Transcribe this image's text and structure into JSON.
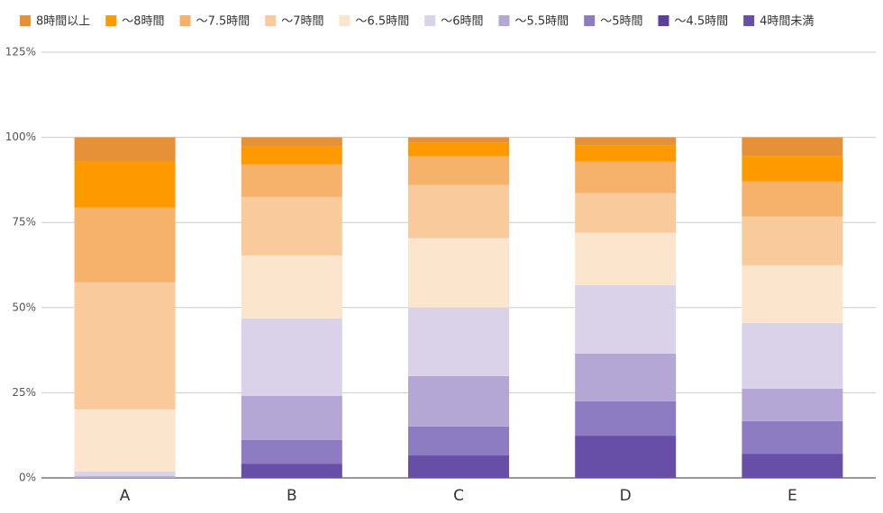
{
  "chart_data": {
    "type": "bar",
    "stacked": true,
    "categories": [
      "A",
      "B",
      "C",
      "D",
      "E"
    ],
    "series": [
      {
        "name": "8時間以上",
        "color": "#e69138",
        "values": [
          7.1,
          2.6,
          1.6,
          2.4,
          5.6
        ]
      },
      {
        "name": "〜8時間",
        "color": "#ff9900",
        "values": [
          13.5,
          5.3,
          4.0,
          4.7,
          7.4
        ]
      },
      {
        "name": "〜7.5時間",
        "color": "#f6b26b",
        "values": [
          22.0,
          9.6,
          8.4,
          9.3,
          10.3
        ]
      },
      {
        "name": "〜7時間",
        "color": "#f9cb9c",
        "values": [
          37.3,
          17.2,
          15.6,
          11.6,
          14.3
        ]
      },
      {
        "name": "〜6.5時間",
        "color": "#fce5cd",
        "values": [
          18.2,
          18.5,
          20.4,
          15.4,
          16.9
        ]
      },
      {
        "name": "〜6時間",
        "color": "#d9d2e9",
        "values": [
          1.4,
          22.7,
          20.1,
          20.1,
          19.3
        ]
      },
      {
        "name": "〜5.5時間",
        "color": "#b4a7d6",
        "values": [
          0.5,
          13.0,
          14.8,
          14.0,
          9.5
        ]
      },
      {
        "name": "〜5時間",
        "color": "#8e7cc3",
        "values": [
          0,
          6.9,
          8.5,
          10.1,
          9.6
        ]
      },
      {
        "name": "〜4.5時間",
        "color": "#5b3f9e",
        "values": [
          0,
          0,
          0,
          0,
          0
        ]
      },
      {
        "name": "4時間未満",
        "color": "#674ea7",
        "values": [
          0,
          4.2,
          6.6,
          12.4,
          7.1
        ]
      }
    ],
    "ylim": [
      0,
      125
    ],
    "yticks": [
      {
        "value": 0,
        "label": "0%"
      },
      {
        "value": 25,
        "label": "25%"
      },
      {
        "value": 50,
        "label": "50%"
      },
      {
        "value": 75,
        "label": "75%"
      },
      {
        "value": 100,
        "label": "100%"
      },
      {
        "value": 125,
        "label": "125%"
      }
    ],
    "grid": true,
    "legend": "top"
  }
}
